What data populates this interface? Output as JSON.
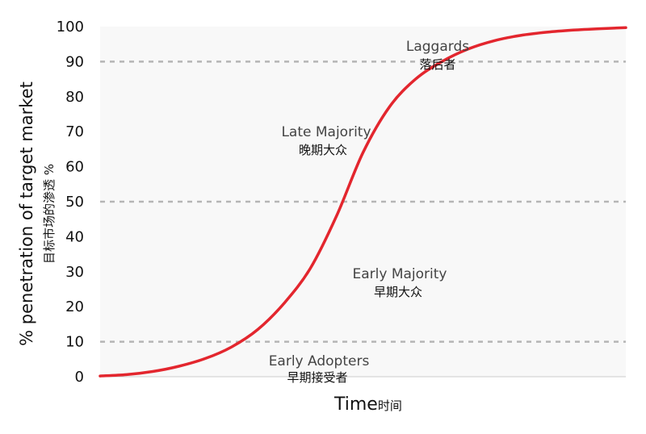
{
  "chart_data": {
    "type": "line",
    "title": "",
    "ylabel": "% penetration of target market",
    "ylabel_secondary": "目标市场的渗透 %",
    "xlabel": "Time",
    "xlabel_secondary": "时间",
    "ylim": [
      0,
      100
    ],
    "y_ticks": [
      "0",
      "10",
      "20",
      "30",
      "40",
      "50",
      "60",
      "70",
      "80",
      "90",
      "100"
    ],
    "y_tick_values": [
      0,
      10,
      20,
      30,
      40,
      50,
      60,
      70,
      80,
      90,
      100
    ],
    "xlim": [
      0,
      1
    ],
    "reference_lines": [
      10,
      50,
      90
    ],
    "grid": false,
    "series": [
      {
        "x": [
          0.0,
          0.05,
          0.1,
          0.15,
          0.2,
          0.25,
          0.3,
          0.35,
          0.4,
          0.45,
          0.5,
          0.55,
          0.6,
          0.65,
          0.7,
          0.75,
          0.8,
          0.85,
          0.9,
          0.95,
          1.0
        ],
        "values": [
          0.2,
          0.6,
          1.5,
          3.0,
          5.2,
          8.5,
          13.5,
          21.0,
          31.0,
          46.0,
          64.0,
          77.0,
          85.0,
          90.0,
          93.6,
          96.0,
          97.5,
          98.4,
          99.0,
          99.4,
          99.7
        ]
      }
    ],
    "annotations": [
      {
        "en": "Early Adopters",
        "zh": "早期接受者"
      },
      {
        "en": "Early Majority",
        "zh": "早期大众"
      },
      {
        "en": "Late Majority",
        "zh": "晚期大众"
      },
      {
        "en": "Laggards",
        "zh": "落后者"
      }
    ],
    "colors": {
      "line": "#e3262e",
      "reference_line": "#b5b5b5",
      "plot_background": "#f8f8f8",
      "axis": "#cccccc"
    }
  }
}
